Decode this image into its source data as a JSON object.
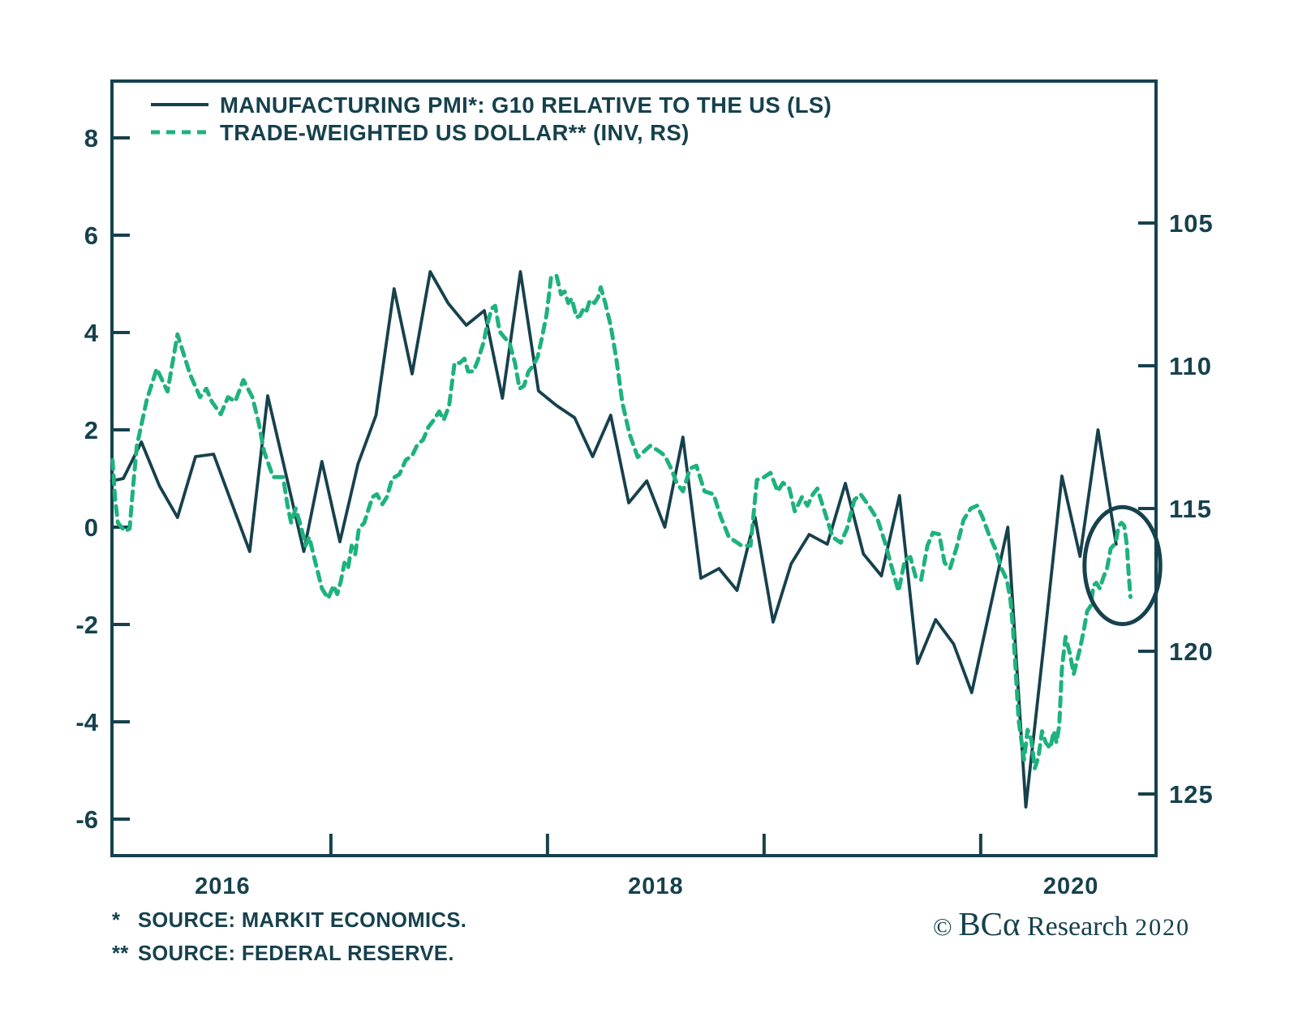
{
  "page": {
    "background": "#ffffff"
  },
  "colors": {
    "ink": "#16414D",
    "green": "#1EB27D"
  },
  "legend": {
    "items": [
      {
        "label": "MANUFACTURING PMI*: G10 RELATIVE TO THE US (LS)",
        "style": "solid"
      },
      {
        "label": "TRADE-WEIGHTED US DOLLAR** (INV, RS)",
        "style": "dashed"
      }
    ]
  },
  "footnotes": [
    {
      "marker": "*",
      "text": "SOURCE: MARKIT ECONOMICS."
    },
    {
      "marker": "**",
      "text": "SOURCE: FEDERAL RESERVE."
    }
  ],
  "copyright": {
    "symbol": "© ",
    "brand": "BCα",
    "text": " Research ",
    "year": "2020"
  },
  "chart_data": {
    "type": "line",
    "title": "",
    "x_unit": "months since Jan 2016 (0 = Jan 2016, monthly points mid-month)",
    "x_year_labels": [
      {
        "label": "2016",
        "month": 5.5
      },
      {
        "label": "2018",
        "month": 29.5
      },
      {
        "label": "2020",
        "month": 52.5
      }
    ],
    "x_boundary_tick_months": [
      11.5,
      23.5,
      35.5,
      47.5
    ],
    "y_left": {
      "ticks": [
        8,
        6,
        4,
        2,
        0,
        -2,
        -4,
        -6
      ],
      "range": [
        -6.9,
        9.2
      ],
      "label": "Manufacturing PMI G10 relative to US"
    },
    "y_right": {
      "ticks": [
        105,
        110,
        115,
        120,
        125
      ],
      "inverted": true,
      "range": [
        100.1,
        127.2
      ],
      "label": "Trade-weighted US dollar (inverted)"
    },
    "grid": false,
    "legend_position": "top-left",
    "series": [
      {
        "name": "MANUFACTURING PMI*: G10 RELATIVE TO THE US (LS)",
        "axis": "left",
        "style": "solid",
        "points": [
          [
            -0.65,
            0.95
          ],
          [
            0,
            1.0
          ],
          [
            1,
            1.75
          ],
          [
            2,
            0.85
          ],
          [
            3,
            0.2
          ],
          [
            4,
            1.45
          ],
          [
            5,
            1.5
          ],
          [
            6,
            0.5
          ],
          [
            7,
            -0.5
          ],
          [
            8,
            2.7
          ],
          [
            9,
            1.1
          ],
          [
            10,
            -0.5
          ],
          [
            11,
            1.35
          ],
          [
            12,
            -0.3
          ],
          [
            13,
            1.3
          ],
          [
            14,
            2.3
          ],
          [
            15,
            4.9
          ],
          [
            16,
            3.15
          ],
          [
            17,
            5.25
          ],
          [
            18,
            4.6
          ],
          [
            19,
            4.15
          ],
          [
            20,
            4.45
          ],
          [
            21,
            2.65
          ],
          [
            22,
            5.25
          ],
          [
            23,
            2.8
          ],
          [
            24,
            2.5
          ],
          [
            25,
            2.25
          ],
          [
            26,
            1.45
          ],
          [
            27,
            2.3
          ],
          [
            28,
            0.5
          ],
          [
            29,
            0.95
          ],
          [
            30,
            0.0
          ],
          [
            31,
            1.85
          ],
          [
            32,
            -1.05
          ],
          [
            33,
            -0.85
          ],
          [
            34,
            -1.3
          ],
          [
            35,
            0.2
          ],
          [
            36,
            -1.95
          ],
          [
            37,
            -0.75
          ],
          [
            38,
            -0.15
          ],
          [
            39,
            -0.35
          ],
          [
            40,
            0.9
          ],
          [
            41,
            -0.55
          ],
          [
            42,
            -1.0
          ],
          [
            43,
            0.65
          ],
          [
            44,
            -2.8
          ],
          [
            45,
            -1.9
          ],
          [
            46,
            -2.4
          ],
          [
            47,
            -3.4
          ],
          [
            48,
            -1.7
          ],
          [
            49,
            0.0
          ],
          [
            50,
            -5.75
          ],
          [
            51,
            -2.4
          ],
          [
            52,
            1.05
          ],
          [
            53,
            -0.6
          ],
          [
            54,
            2.0
          ],
          [
            55,
            -0.35
          ]
        ]
      },
      {
        "name": "TRADE-WEIGHTED US DOLLAR** (INV, RS)",
        "axis": "right",
        "style": "dashed",
        "points": [
          [
            -0.6,
            113.3
          ],
          [
            -0.45,
            114.7
          ],
          [
            -0.3,
            115.5
          ],
          [
            0.1,
            115.8
          ],
          [
            0.35,
            115.7
          ],
          [
            0.55,
            114.2
          ],
          [
            0.75,
            112.8
          ],
          [
            1.3,
            111.2
          ],
          [
            1.85,
            110.1
          ],
          [
            2.45,
            110.9
          ],
          [
            3.0,
            108.9
          ],
          [
            3.7,
            110.3
          ],
          [
            4.25,
            111.1
          ],
          [
            4.6,
            110.8
          ],
          [
            4.9,
            111.25
          ],
          [
            5.4,
            111.7
          ],
          [
            5.8,
            111.1
          ],
          [
            6.2,
            111.25
          ],
          [
            6.65,
            110.5
          ],
          [
            7.15,
            111.1
          ],
          [
            7.5,
            112.0
          ],
          [
            7.8,
            113.0
          ],
          [
            8.3,
            113.9
          ],
          [
            8.85,
            113.9
          ],
          [
            9.1,
            114.9
          ],
          [
            9.3,
            115.5
          ],
          [
            9.55,
            115.0
          ],
          [
            9.85,
            115.65
          ],
          [
            10.1,
            116.3
          ],
          [
            10.3,
            116.0
          ],
          [
            10.55,
            116.65
          ],
          [
            11.0,
            117.8
          ],
          [
            11.35,
            118.15
          ],
          [
            11.65,
            117.7
          ],
          [
            11.85,
            118.0
          ],
          [
            12.05,
            117.55
          ],
          [
            12.25,
            116.9
          ],
          [
            12.45,
            117.1
          ],
          [
            12.65,
            116.3
          ],
          [
            12.85,
            116.6
          ],
          [
            13.05,
            115.7
          ],
          [
            13.35,
            115.5
          ],
          [
            13.6,
            115.0
          ],
          [
            13.8,
            114.6
          ],
          [
            14.05,
            114.5
          ],
          [
            14.35,
            114.85
          ],
          [
            14.6,
            114.6
          ],
          [
            14.9,
            113.95
          ],
          [
            15.3,
            113.8
          ],
          [
            15.65,
            113.3
          ],
          [
            16.0,
            113.15
          ],
          [
            16.3,
            112.75
          ],
          [
            16.6,
            112.6
          ],
          [
            16.9,
            112.15
          ],
          [
            17.2,
            111.9
          ],
          [
            17.5,
            111.6
          ],
          [
            17.75,
            111.9
          ],
          [
            18.05,
            111.4
          ],
          [
            18.35,
            109.9
          ],
          [
            18.65,
            109.9
          ],
          [
            18.9,
            109.75
          ],
          [
            19.1,
            110.2
          ],
          [
            19.4,
            110.2
          ],
          [
            19.65,
            109.8
          ],
          [
            19.95,
            109.2
          ],
          [
            20.15,
            108.6
          ],
          [
            20.4,
            108.0
          ],
          [
            20.6,
            107.9
          ],
          [
            20.85,
            108.8
          ],
          [
            21.1,
            109.0
          ],
          [
            21.4,
            109.2
          ],
          [
            21.7,
            109.9
          ],
          [
            21.95,
            110.8
          ],
          [
            22.2,
            110.7
          ],
          [
            22.45,
            110.2
          ],
          [
            22.7,
            110.0
          ],
          [
            22.95,
            109.7
          ],
          [
            23.2,
            109.0
          ],
          [
            23.45,
            108.2
          ],
          [
            23.7,
            106.9
          ],
          [
            24.0,
            106.85
          ],
          [
            24.25,
            107.5
          ],
          [
            24.45,
            107.4
          ],
          [
            24.65,
            107.8
          ],
          [
            24.85,
            107.65
          ],
          [
            25.1,
            108.3
          ],
          [
            25.3,
            108.25
          ],
          [
            25.5,
            108.0
          ],
          [
            25.65,
            108.1
          ],
          [
            25.85,
            107.7
          ],
          [
            26.1,
            107.8
          ],
          [
            26.3,
            107.6
          ],
          [
            26.45,
            107.25
          ],
          [
            26.7,
            107.8
          ],
          [
            27.0,
            108.6
          ],
          [
            27.3,
            109.7
          ],
          [
            27.65,
            111.3
          ],
          [
            28.05,
            112.4
          ],
          [
            28.5,
            113.2
          ],
          [
            29.2,
            112.8
          ],
          [
            29.7,
            113.0
          ],
          [
            30.0,
            113.15
          ],
          [
            30.35,
            113.6
          ],
          [
            30.65,
            114.1
          ],
          [
            31.0,
            114.4
          ],
          [
            31.4,
            113.6
          ],
          [
            31.75,
            113.5
          ],
          [
            32.2,
            114.4
          ],
          [
            32.7,
            114.5
          ],
          [
            33.1,
            115.3
          ],
          [
            33.55,
            116.0
          ],
          [
            34.25,
            116.3
          ],
          [
            34.75,
            116.3
          ],
          [
            35.1,
            114.0
          ],
          [
            35.5,
            113.9
          ],
          [
            35.85,
            113.75
          ],
          [
            36.25,
            114.4
          ],
          [
            36.55,
            114.1
          ],
          [
            36.9,
            114.3
          ],
          [
            37.2,
            115.1
          ],
          [
            37.6,
            114.6
          ],
          [
            37.9,
            114.9
          ],
          [
            38.2,
            114.5
          ],
          [
            38.45,
            114.3
          ],
          [
            38.75,
            114.9
          ],
          [
            39.3,
            116.0
          ],
          [
            39.75,
            116.2
          ],
          [
            40.1,
            115.7
          ],
          [
            40.5,
            114.7
          ],
          [
            40.85,
            114.5
          ],
          [
            41.3,
            114.9
          ],
          [
            41.8,
            115.4
          ],
          [
            42.2,
            116.2
          ],
          [
            42.55,
            117.0
          ],
          [
            42.95,
            117.9
          ],
          [
            43.3,
            116.8
          ],
          [
            43.6,
            116.7
          ],
          [
            43.9,
            117.4
          ],
          [
            44.2,
            117.5
          ],
          [
            44.55,
            116.3
          ],
          [
            44.85,
            115.85
          ],
          [
            45.2,
            115.9
          ],
          [
            45.5,
            116.9
          ],
          [
            45.8,
            117.1
          ],
          [
            46.15,
            116.4
          ],
          [
            46.55,
            115.4
          ],
          [
            46.95,
            115.0
          ],
          [
            47.3,
            114.9
          ],
          [
            47.6,
            115.3
          ],
          [
            47.95,
            115.9
          ],
          [
            48.3,
            116.4
          ],
          [
            48.65,
            117.1
          ],
          [
            48.95,
            117.5
          ],
          [
            49.15,
            118.2
          ],
          [
            49.3,
            119.3
          ],
          [
            49.45,
            120.8
          ],
          [
            49.6,
            122.4
          ],
          [
            49.75,
            123.1
          ],
          [
            49.9,
            123.8
          ],
          [
            50.1,
            122.75
          ],
          [
            50.3,
            123.1
          ],
          [
            50.5,
            124.1
          ],
          [
            50.7,
            123.7
          ],
          [
            50.9,
            122.8
          ],
          [
            51.1,
            123.2
          ],
          [
            51.35,
            123.4
          ],
          [
            51.55,
            122.8
          ],
          [
            51.7,
            123.2
          ],
          [
            51.85,
            122.6
          ],
          [
            52.0,
            120.6
          ],
          [
            52.2,
            119.5
          ],
          [
            52.45,
            120.1
          ],
          [
            52.65,
            120.8
          ],
          [
            53.0,
            119.9
          ],
          [
            53.2,
            119.3
          ],
          [
            53.4,
            118.6
          ],
          [
            53.6,
            118.4
          ],
          [
            53.75,
            117.7
          ],
          [
            53.9,
            117.6
          ],
          [
            54.1,
            117.8
          ],
          [
            54.3,
            117.4
          ],
          [
            54.5,
            117.1
          ],
          [
            54.7,
            116.4
          ],
          [
            54.85,
            116.3
          ],
          [
            55.0,
            116.1
          ],
          [
            55.15,
            115.6
          ],
          [
            55.3,
            115.5
          ],
          [
            55.45,
            115.6
          ],
          [
            55.6,
            116.3
          ],
          [
            55.7,
            117.3
          ],
          [
            55.8,
            118.1
          ]
        ]
      }
    ],
    "annotation_circle": {
      "center_month": 55.35,
      "center_right_value": 117.0,
      "radius_months": 2.1,
      "radius_right_units": 2.05,
      "meaning": "highlights latest moves of both series"
    }
  }
}
